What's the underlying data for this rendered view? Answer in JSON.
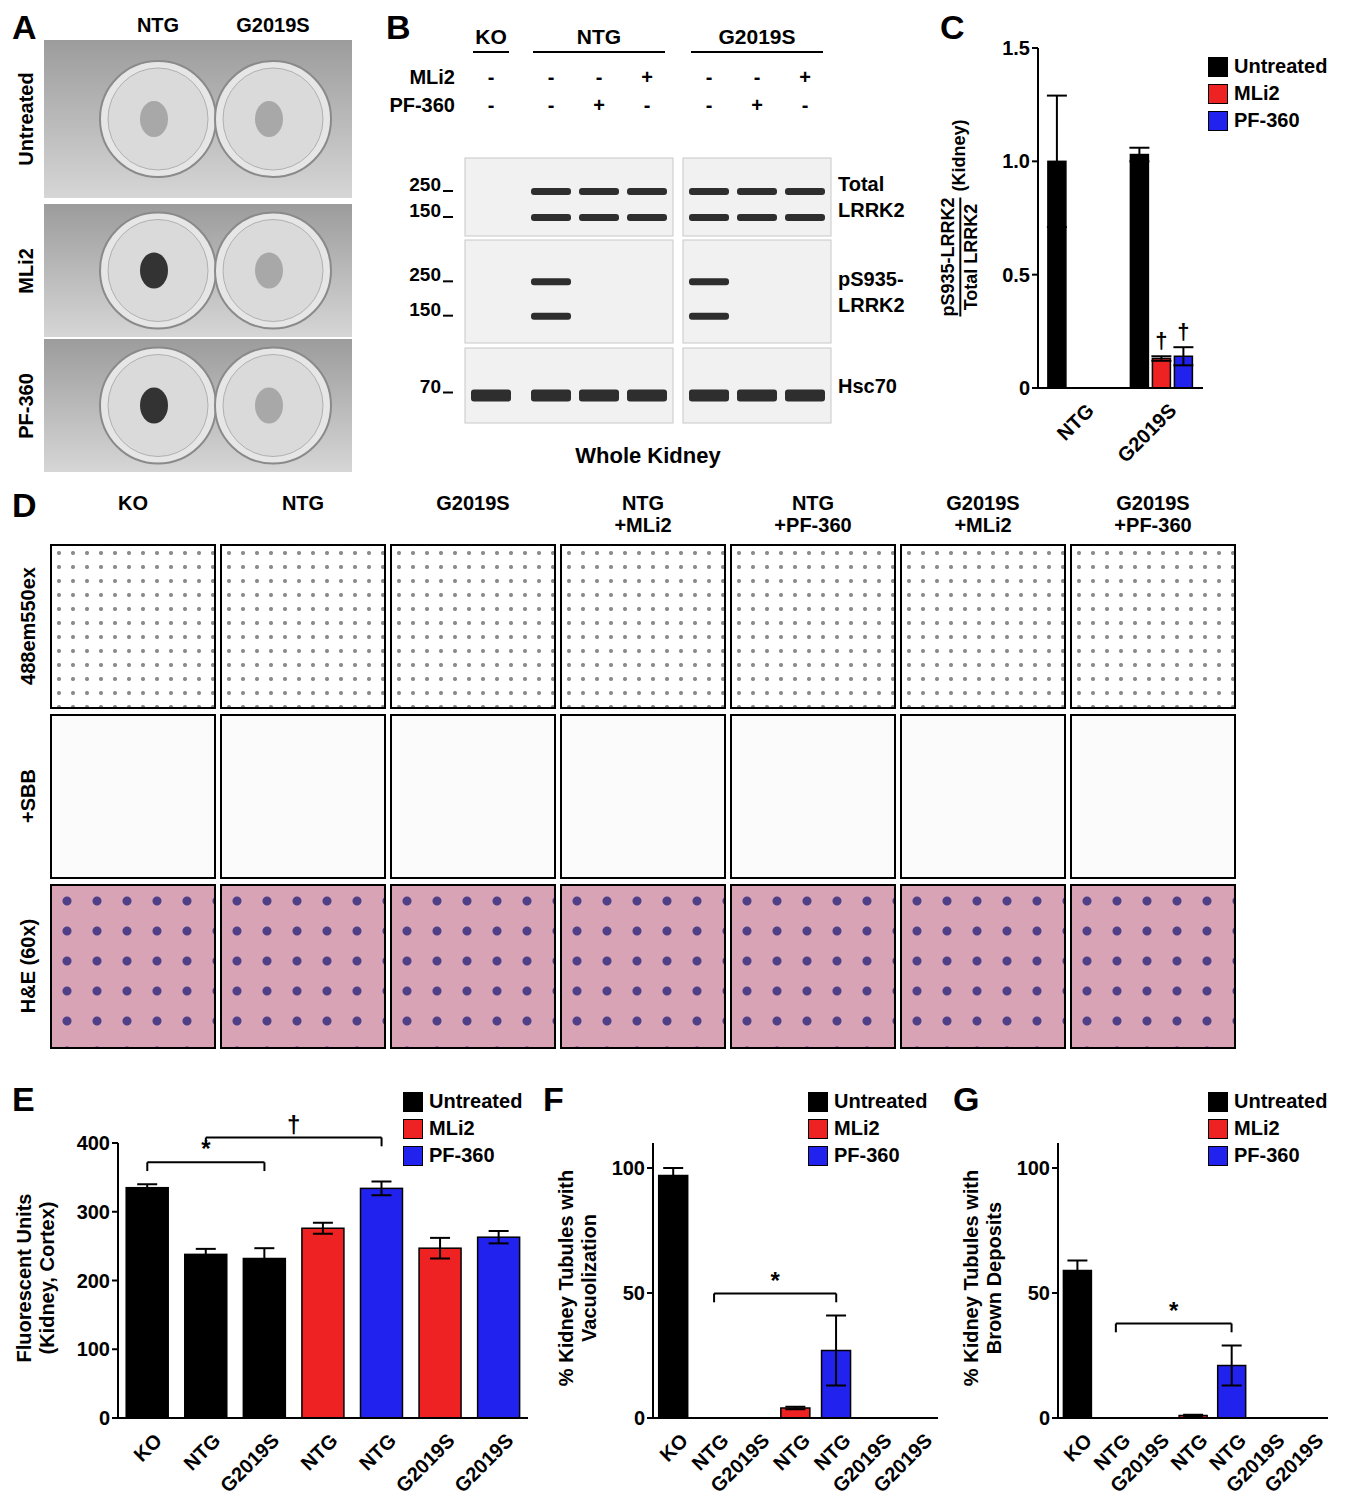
{
  "panels": {
    "A": {
      "label": "A",
      "columns": [
        "NTG",
        "G2019S"
      ],
      "rows": [
        "Untreated",
        "MLi2",
        "PF-360"
      ]
    },
    "B": {
      "label": "B",
      "groups": [
        {
          "name": "KO",
          "lanes": 1
        },
        {
          "name": "NTG",
          "lanes": 3
        },
        {
          "name": "G2019S",
          "lanes": 3
        }
      ],
      "treatments": [
        {
          "name": "MLi2",
          "signs": [
            "-",
            "-",
            "-",
            "+",
            "-",
            "-",
            "+"
          ]
        },
        {
          "name": "PF-360",
          "signs": [
            "-",
            "-",
            "+",
            "-",
            "-",
            "+",
            "-"
          ]
        }
      ],
      "blots": [
        {
          "target": [
            "Total",
            "LRRK2"
          ],
          "markers": [
            250,
            150
          ]
        },
        {
          "target": [
            "pS935-",
            "LRRK2"
          ],
          "markers": [
            250,
            150
          ]
        },
        {
          "target": [
            "Hsc70"
          ],
          "markers": [
            70
          ]
        }
      ],
      "caption": "Whole Kidney"
    },
    "D": {
      "label": "D",
      "columns": [
        [
          "KO"
        ],
        [
          "NTG"
        ],
        [
          "G2019S"
        ],
        [
          "NTG",
          "+MLi2"
        ],
        [
          "NTG",
          "+PF-360"
        ],
        [
          "G2019S",
          "+MLi2"
        ],
        [
          "G2019S",
          "+PF-360"
        ]
      ],
      "rows": [
        "488em550ex",
        "+SBB",
        "H&E (60x)"
      ]
    }
  },
  "chart_data": [
    {
      "panel": "C",
      "type": "bar",
      "ylabel": {
        "numerator": "pS935-LRRK2",
        "denominator": "Total LRRK2",
        "note": "(Kidney)"
      },
      "categories": [
        "NTG",
        "G2019S"
      ],
      "series": [
        {
          "name": "Untreated",
          "color": "#000000",
          "values": [
            1.0,
            1.03
          ],
          "errors": [
            0.29,
            0.03
          ]
        },
        {
          "name": "MLi2",
          "color": "#ee2222",
          "values": [
            null,
            0.13
          ],
          "errors": [
            null,
            0.01
          ],
          "annotations": [
            null,
            "†"
          ]
        },
        {
          "name": "PF-360",
          "color": "#2222ee",
          "values": [
            null,
            0.14
          ],
          "errors": [
            null,
            0.04
          ],
          "annotations": [
            null,
            "†"
          ]
        }
      ],
      "ylim": [
        0,
        1.5
      ],
      "yticks": [
        0,
        0.5,
        {
          "value": 1,
          "label": "1.0"
        },
        1.5
      ],
      "legend": "upper right"
    },
    {
      "panel": "E",
      "type": "bar",
      "ylabel": [
        "Fluorescent Units",
        "(Kidney, Cortex)"
      ],
      "categories": [
        "KO",
        "NTG",
        "G2019S",
        "NTG",
        "NTG",
        "G2019S",
        "G2019S"
      ],
      "series": [
        {
          "name": "Untreated",
          "color": "#000000",
          "values": [
            335,
            238,
            232,
            null,
            null,
            null,
            null
          ],
          "errors": [
            5,
            8,
            15,
            null,
            null,
            null,
            null
          ]
        },
        {
          "name": "MLi2",
          "color": "#ee2222",
          "values": [
            null,
            null,
            null,
            276,
            null,
            247,
            null
          ],
          "errors": [
            null,
            null,
            null,
            8,
            null,
            15,
            null
          ]
        },
        {
          "name": "PF-360",
          "color": "#2222ee",
          "values": [
            null,
            null,
            null,
            null,
            334,
            null,
            263
          ],
          "errors": [
            null,
            null,
            null,
            null,
            10,
            null,
            9
          ]
        }
      ],
      "ylim": [
        0,
        400
      ],
      "yticks": [
        0,
        100,
        200,
        300,
        400
      ],
      "annotations": [
        {
          "text": "*",
          "span": [
            0,
            2
          ]
        },
        {
          "text": "†",
          "span": [
            1,
            4
          ]
        }
      ],
      "legend": "upper right"
    },
    {
      "panel": "F",
      "type": "bar",
      "ylabel": [
        "% Kidney Tubules with",
        "Vacuolization"
      ],
      "categories": [
        "KO",
        "NTG",
        "G2019S",
        "NTG",
        "NTG",
        "G2019S",
        "G2019S"
      ],
      "series": [
        {
          "name": "Untreated",
          "color": "#000000",
          "values": [
            97,
            0,
            0,
            null,
            null,
            null,
            null
          ],
          "errors": [
            3,
            null,
            null,
            null,
            null,
            null,
            null
          ]
        },
        {
          "name": "MLi2",
          "color": "#ee2222",
          "values": [
            null,
            null,
            null,
            4,
            null,
            0,
            null
          ],
          "errors": [
            null,
            null,
            null,
            0.5,
            null,
            null,
            null
          ]
        },
        {
          "name": "PF-360",
          "color": "#2222ee",
          "values": [
            null,
            null,
            null,
            null,
            27,
            null,
            0
          ],
          "errors": [
            null,
            null,
            null,
            null,
            14,
            null,
            null
          ]
        }
      ],
      "ylim": [
        0,
        110
      ],
      "yticks": [
        0,
        50,
        100
      ],
      "annotations": [
        {
          "text": "*",
          "span": [
            1,
            4
          ]
        }
      ],
      "legend": "upper right"
    },
    {
      "panel": "G",
      "type": "bar",
      "ylabel": [
        "% Kidney Tubules with",
        "Brown Deposits"
      ],
      "categories": [
        "KO",
        "NTG",
        "G2019S",
        "NTG",
        "NTG",
        "G2019S",
        "G2019S"
      ],
      "series": [
        {
          "name": "Untreated",
          "color": "#000000",
          "values": [
            59,
            0,
            0,
            null,
            null,
            null,
            null
          ],
          "errors": [
            4,
            null,
            null,
            null,
            null,
            null,
            null
          ]
        },
        {
          "name": "MLi2",
          "color": "#ee2222",
          "values": [
            null,
            null,
            null,
            1,
            null,
            0,
            null
          ],
          "errors": [
            null,
            null,
            null,
            0.3,
            null,
            null,
            null
          ]
        },
        {
          "name": "PF-360",
          "color": "#2222ee",
          "values": [
            null,
            null,
            null,
            null,
            21,
            null,
            0
          ],
          "errors": [
            null,
            null,
            null,
            null,
            8,
            null,
            null
          ]
        }
      ],
      "ylim": [
        0,
        110
      ],
      "yticks": [
        0,
        50,
        100
      ],
      "annotations": [
        {
          "text": "*",
          "span": [
            1,
            4
          ]
        }
      ],
      "legend": "upper right"
    }
  ]
}
